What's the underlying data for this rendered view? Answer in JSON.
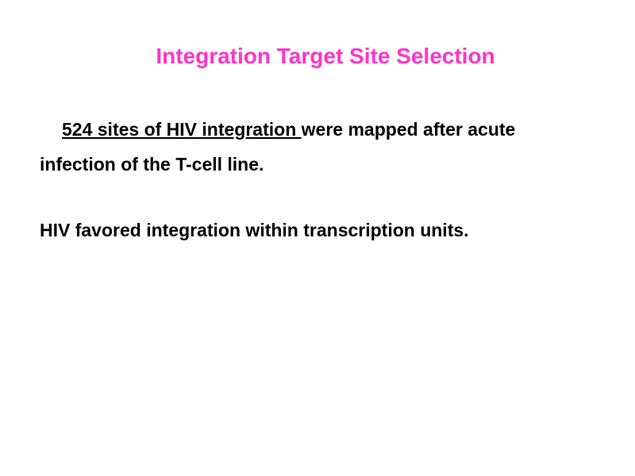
{
  "slide": {
    "title": "Integration Target Site Selection",
    "title_color": "#ff33cc",
    "title_fontsize": 28,
    "body_fontsize": 23,
    "body_color": "#000000",
    "background_color": "#ffffff",
    "paragraph1_underlined": "524 sites of HIV integration ",
    "paragraph1_rest": "were mapped after acute infection of the T-cell line.",
    "paragraph2": "HIV favored integration within transcription units."
  }
}
